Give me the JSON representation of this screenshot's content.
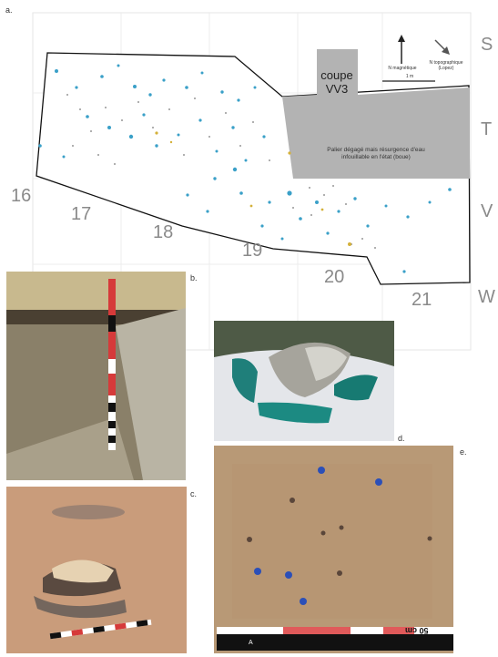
{
  "panels": {
    "a": "a.",
    "b": "b.",
    "c": "c.",
    "d": "d.",
    "e": "e."
  },
  "map": {
    "coupe_line1": "coupe",
    "coupe_line2": "VV3",
    "palier_line1": "Palier dégagé mais résurgence d'eau",
    "palier_line2": "infouillable en l'état (boue)",
    "north_magnetic": "N magnétique",
    "north_topographic_line1": "N topographique",
    "north_topographic_line2": "(Lopez)",
    "scale_label": "1 m",
    "rows": [
      "S",
      "T",
      "V",
      "W"
    ],
    "columns": [
      "16",
      "17",
      "18",
      "19",
      "20",
      "21"
    ]
  },
  "photo_e": {
    "scale_label": "50 cm",
    "scale_marker": "A"
  },
  "colors": {
    "finds_blue": "#3aa0c8",
    "finds_yellow": "#d4b13a",
    "excluded_zone": "#b3b3b3",
    "scale_red": "#e05a5a"
  }
}
